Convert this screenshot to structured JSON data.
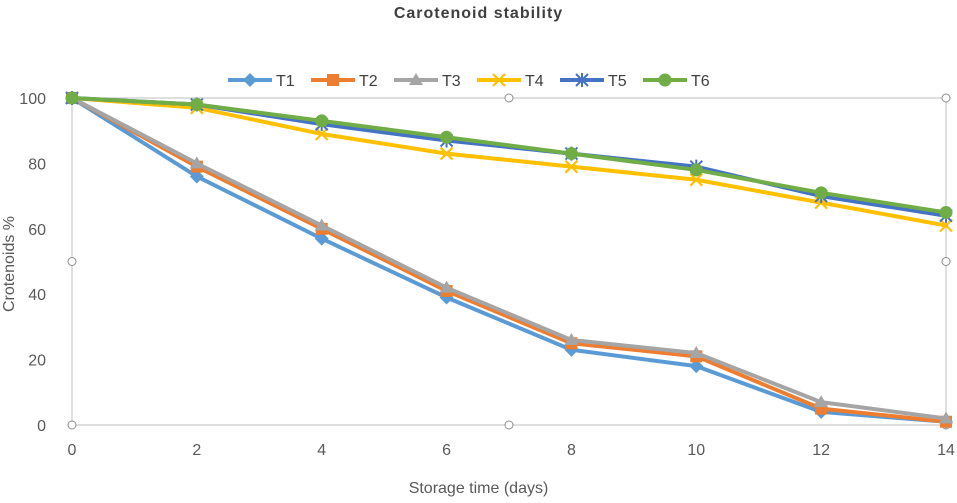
{
  "chart_data": {
    "type": "line",
    "title": "Carotenoid stability",
    "xlabel": "Storage time (days)",
    "ylabel": "Crotenoids %",
    "x": [
      0,
      2,
      4,
      6,
      8,
      10,
      12,
      14
    ],
    "xlim": [
      0,
      14
    ],
    "ylim": [
      0,
      100
    ],
    "xticks": [
      0,
      2,
      4,
      6,
      8,
      10,
      12,
      14
    ],
    "yticks": [
      0,
      20,
      40,
      60,
      80,
      100
    ],
    "grid": false,
    "legend_position": "top",
    "series": [
      {
        "name": "T1",
        "color": "#5b9bd5",
        "marker": "diamond",
        "values": [
          100,
          76,
          57,
          39,
          23,
          18,
          4,
          1
        ]
      },
      {
        "name": "T2",
        "color": "#ed7d31",
        "marker": "square",
        "values": [
          100,
          79,
          60,
          41,
          25,
          21,
          5,
          1
        ]
      },
      {
        "name": "T3",
        "color": "#a5a5a5",
        "marker": "triangle",
        "values": [
          100,
          80,
          61,
          42,
          26,
          22,
          7,
          2
        ]
      },
      {
        "name": "T4",
        "color": "#ffc000",
        "marker": "x",
        "values": [
          100,
          97,
          89,
          83,
          79,
          75,
          68,
          61
        ]
      },
      {
        "name": "T5",
        "color": "#4472c4",
        "marker": "star",
        "values": [
          100,
          98,
          92,
          87,
          83,
          79,
          70,
          64
        ]
      },
      {
        "name": "T6",
        "color": "#70ad47",
        "marker": "circle",
        "values": [
          100,
          98,
          93,
          88,
          83,
          78,
          71,
          65
        ]
      }
    ]
  }
}
